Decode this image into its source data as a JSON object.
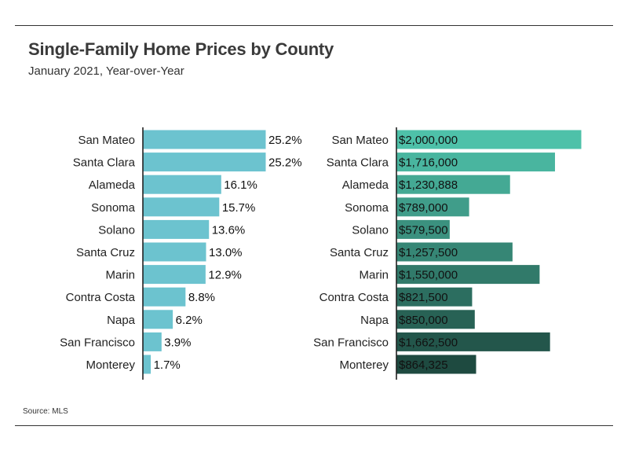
{
  "header": {
    "title": "Single-Family Home Prices by County",
    "subtitle": "January 2021, Year-over-Year"
  },
  "footer": {
    "source": "Source: MLS"
  },
  "colors": {
    "pct_bar": "#6cc3cf",
    "price_bar_gradient": [
      "#4ec1a9",
      "#1e4a40"
    ],
    "axis": "#222222"
  },
  "chart_data": [
    {
      "type": "bar",
      "orientation": "horizontal",
      "categories": [
        "San Mateo",
        "Santa Clara",
        "Alameda",
        "Sonoma",
        "Solano",
        "Santa Cruz",
        "Marin",
        "Contra Costa",
        "Napa",
        "San Francisco",
        "Monterey"
      ],
      "values": [
        25.2,
        25.2,
        16.1,
        15.7,
        13.6,
        13.0,
        12.9,
        8.8,
        6.2,
        3.9,
        1.7
      ],
      "labels": [
        "25.2%",
        "25.2%",
        "16.1%",
        "15.7%",
        "13.6%",
        "13.0%",
        "12.9%",
        "8.8%",
        "6.2%",
        "3.9%",
        "1.7%"
      ],
      "unit": "%",
      "xlim": [
        0,
        25.2
      ],
      "grid": false,
      "legend": "none"
    },
    {
      "type": "bar",
      "orientation": "horizontal",
      "categories": [
        "San Mateo",
        "Santa Clara",
        "Alameda",
        "Sonoma",
        "Solano",
        "Santa Cruz",
        "Marin",
        "Contra Costa",
        "Napa",
        "San Francisco",
        "Monterey"
      ],
      "values": [
        2000000,
        1716000,
        1230888,
        789000,
        579500,
        1257500,
        1550000,
        821500,
        850000,
        1662500,
        864325
      ],
      "labels": [
        "$2,000,000",
        "$1,716,000",
        "$1,230,888",
        "$789,000",
        "$579,500",
        "$1,257,500",
        "$1,550,000",
        "$821,500",
        "$850,000",
        "$1,662,500",
        "$864,325"
      ],
      "unit": "$",
      "xlim": [
        0,
        2000000
      ],
      "grid": false,
      "legend": "none"
    }
  ]
}
